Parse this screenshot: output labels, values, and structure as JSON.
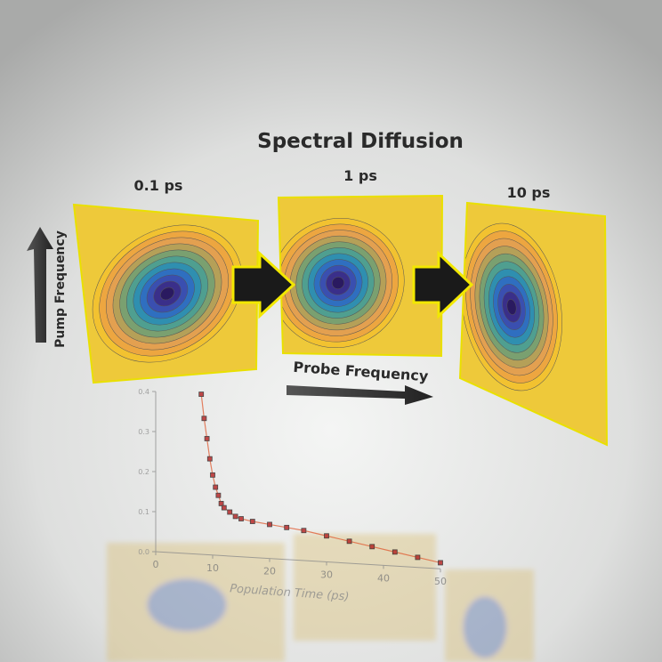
{
  "title": "Spectral Diffusion",
  "panels": [
    {
      "label": "0.1 ps"
    },
    {
      "label": "1 ps"
    },
    {
      "label": "10 ps"
    }
  ],
  "axes": {
    "pump": "Pump Frequency",
    "probe": "Probe Frequency"
  },
  "inset_chart": {
    "type": "scatter",
    "x_label": "Population Time (ps)",
    "xlim": [
      0,
      50
    ],
    "xticks": [
      0,
      10,
      20,
      30,
      40,
      50
    ],
    "ylim": [
      0,
      0.4
    ],
    "yticks": [
      {
        "value": 0,
        "label": "0.0"
      },
      {
        "value": 0.1,
        "label": "0.1"
      },
      {
        "value": 0.2,
        "label": "0.2"
      },
      {
        "value": 0.3,
        "label": "0.3"
      },
      {
        "value": 0.4,
        "label": "0.4"
      }
    ],
    "color": "#b01010",
    "x": [
      8,
      8.5,
      9,
      9.5,
      10,
      10.5,
      11,
      11.5,
      12,
      13,
      14,
      15,
      17,
      20,
      23,
      26,
      30,
      34,
      38,
      42,
      46,
      50
    ],
    "y": [
      0.4,
      0.34,
      0.29,
      0.24,
      0.2,
      0.17,
      0.15,
      0.13,
      0.12,
      0.11,
      0.1,
      0.095,
      0.09,
      0.085,
      0.08,
      0.075,
      0.065,
      0.055,
      0.045,
      0.035,
      0.025,
      0.015
    ]
  }
}
